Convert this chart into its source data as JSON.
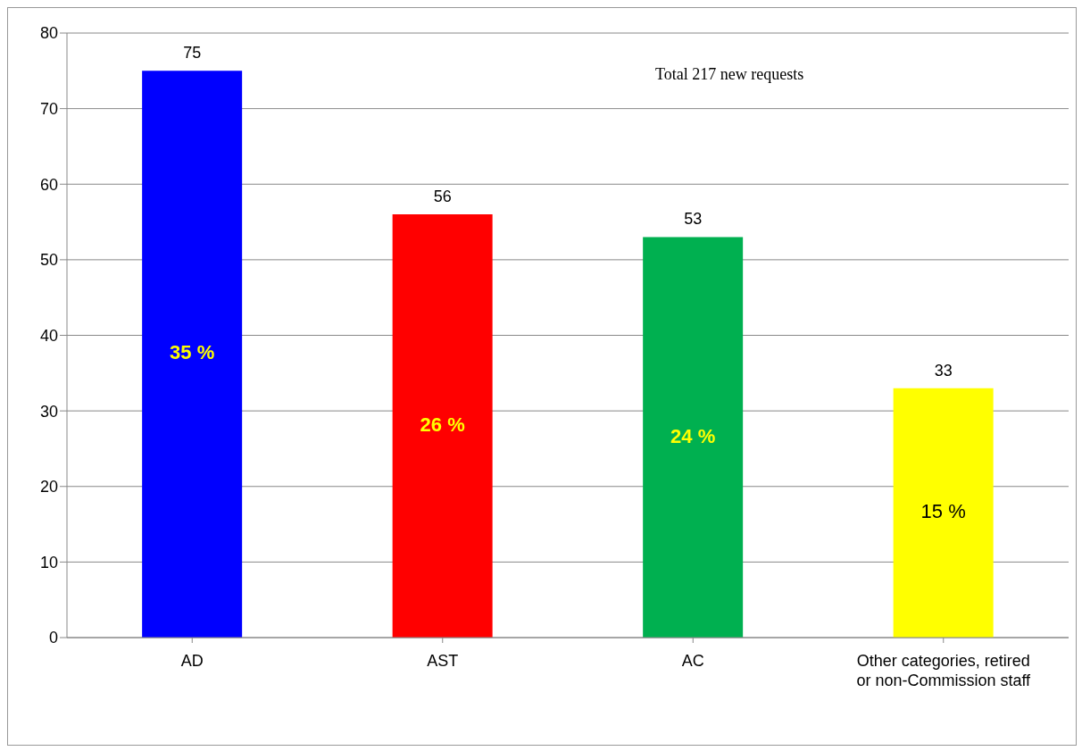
{
  "chart_data": {
    "type": "bar",
    "categories": [
      "AD",
      "AST",
      "AC",
      "Other categories, retired or non-Commission staff"
    ],
    "values": [
      75,
      56,
      53,
      33
    ],
    "colors": [
      "#0000ff",
      "#ff0000",
      "#00b050",
      "#ffff00"
    ],
    "ylim": [
      0,
      80
    ],
    "yticks": [
      0,
      10,
      20,
      30,
      40,
      50,
      60,
      70,
      80
    ],
    "grid": "y",
    "legend": false,
    "data_labels": true,
    "annotations": [
      "Total 217 new requests",
      "35 %",
      "26 %",
      "24 %",
      "15 %"
    ]
  }
}
